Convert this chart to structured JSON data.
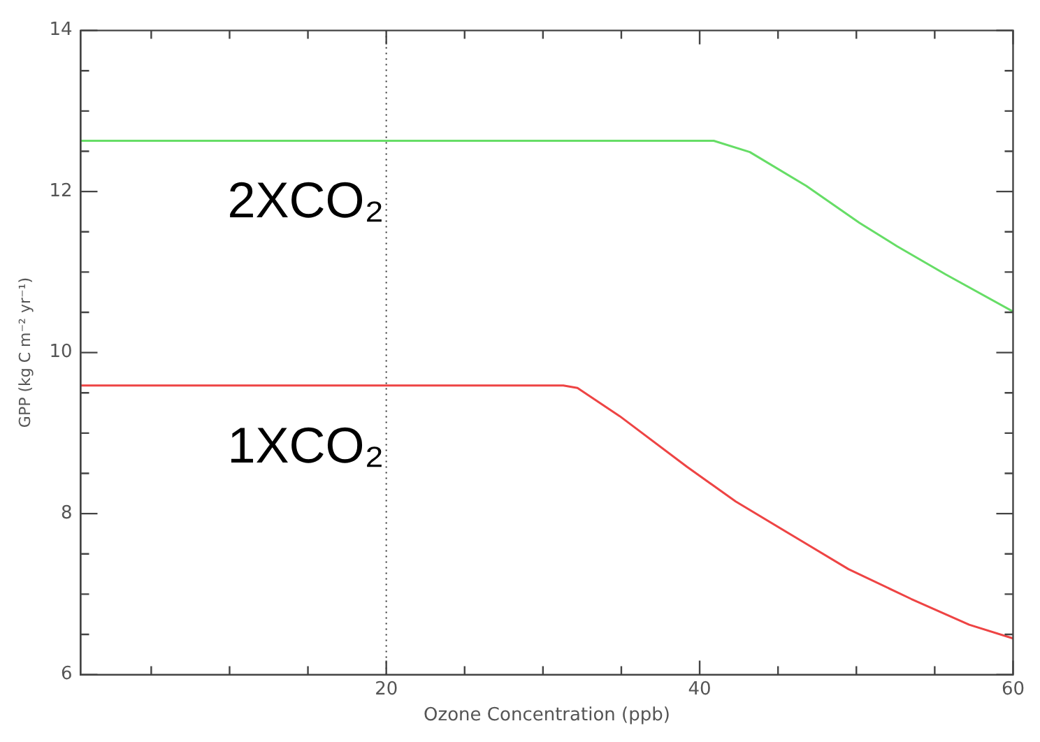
{
  "chart_data": {
    "type": "line",
    "xlabel": "Ozone Concentration (ppb)",
    "ylabel": "GPP (kg C m⁻² yr⁻¹)",
    "xlim": [
      0.5,
      60
    ],
    "xticks": [
      {
        "value": 5,
        "label": null
      },
      {
        "value": 10,
        "label": null
      },
      {
        "value": 15,
        "label": null
      },
      20,
      {
        "value": 25,
        "label": null
      },
      {
        "value": 30,
        "label": null
      },
      {
        "value": 35,
        "label": null
      },
      40,
      {
        "value": 45,
        "label": null
      },
      {
        "value": 50,
        "label": null
      },
      {
        "value": 55,
        "label": null
      },
      60
    ],
    "ylim": [
      6,
      14
    ],
    "yticks": [
      6,
      {
        "value": 6.5,
        "label": null
      },
      {
        "value": 7,
        "label": null
      },
      {
        "value": 7.5,
        "label": null
      },
      8,
      {
        "value": 8.5,
        "label": null
      },
      {
        "value": 9,
        "label": null
      },
      {
        "value": 9.5,
        "label": null
      },
      10,
      {
        "value": 10.5,
        "label": null
      },
      {
        "value": 11,
        "label": null
      },
      {
        "value": 11.5,
        "label": null
      },
      12,
      {
        "value": 12.5,
        "label": null
      },
      {
        "value": 13,
        "label": null
      },
      {
        "value": 13.5,
        "label": null
      },
      14
    ],
    "grid": false,
    "legend": false,
    "marker": "none",
    "line_style": "solid",
    "ref_lines": [
      {
        "axis": "x",
        "value": 20,
        "color": "#333333",
        "line_style": "dotted"
      }
    ],
    "series": [
      {
        "name": "2XCO₂",
        "color": "#66dd66",
        "x": [
          0.5,
          40.9,
          43.2,
          46.8,
          50.2,
          52.6,
          55.7,
          60
        ],
        "values": [
          12.63,
          12.63,
          12.49,
          12.07,
          11.61,
          11.32,
          10.97,
          10.51
        ]
      },
      {
        "name": "1XCO₂",
        "color": "#ee4444",
        "x": [
          0.5,
          31.3,
          32.2,
          34.9,
          39.2,
          42.3,
          46.5,
          49.5,
          53.5,
          57.2,
          60
        ],
        "values": [
          9.59,
          9.59,
          9.56,
          9.21,
          8.58,
          8.15,
          7.66,
          7.31,
          6.94,
          6.62,
          6.45
        ]
      }
    ]
  }
}
